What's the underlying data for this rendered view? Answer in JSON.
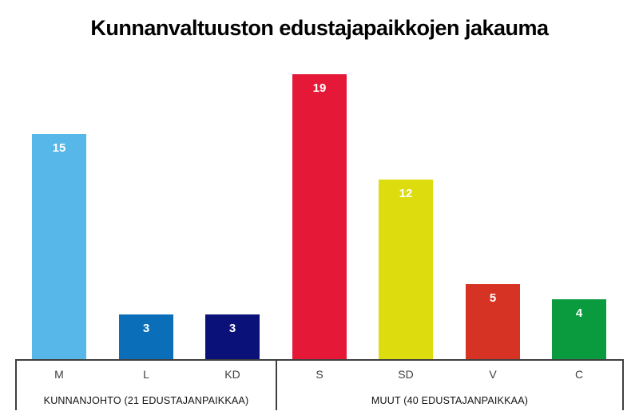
{
  "title": "Kunnanvaltuuston edustajapaikkojen jakauma",
  "chart_data": {
    "type": "bar",
    "categories": [
      "M",
      "L",
      "KD",
      "S",
      "SD",
      "V",
      "C"
    ],
    "values": [
      15,
      3,
      3,
      19,
      12,
      5,
      4
    ],
    "bar_colors": [
      "#56B7E8",
      "#0A6FB8",
      "#0A1178",
      "#E51937",
      "#DCDC0F",
      "#D63324",
      "#0A9B3E"
    ],
    "value_label_color": "#FFFFFF",
    "axis_color": "#3F3F3F",
    "ylim": [
      0,
      19
    ],
    "grid": "off",
    "legend": "none",
    "groups": [
      {
        "label": "KUNNANJOHTO (21 EDUSTAJANPAIKKAA)",
        "categories": [
          "M",
          "L",
          "KD"
        ],
        "seats_total": 21
      },
      {
        "label": "MUUT (40 EDUSTAJANPAIKKAA)",
        "categories": [
          "S",
          "SD",
          "V",
          "C"
        ],
        "seats_total": 40
      }
    ],
    "title": "Kunnanvaltuuston edustajapaikkojen jakauma"
  }
}
